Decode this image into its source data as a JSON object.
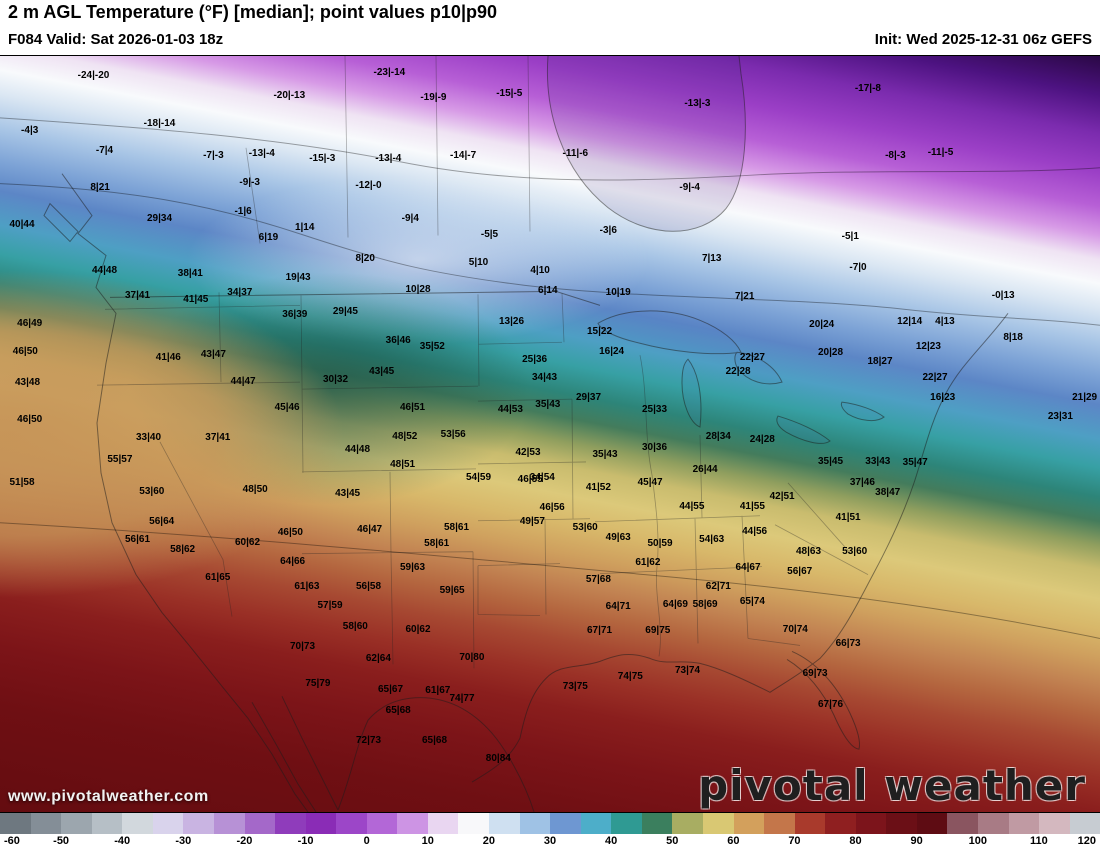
{
  "header": {
    "title": "2 m AGL Temperature (°F) [median]; point values p10|p90",
    "valid": "F084 Valid: Sat 2026-01-03 18z",
    "init": "Init: Wed 2025-12-31 06z GEFS"
  },
  "watermark": {
    "url_text": "www.pivotalweather.com",
    "logo_text": "pivotal weather"
  },
  "colorbar": {
    "min": -60,
    "max": 120,
    "ticks": [
      -60,
      -50,
      -40,
      -30,
      -20,
      -10,
      0,
      10,
      20,
      30,
      40,
      50,
      60,
      70,
      80,
      90,
      100,
      110,
      120
    ],
    "segments": [
      "#6e7880",
      "#848e97",
      "#9ca6ae",
      "#b6bfc6",
      "#d2d8dd",
      "#d9d3ec",
      "#c9b4e2",
      "#b791d6",
      "#a468c9",
      "#8f3cbb",
      "#8a2cb6",
      "#9c46c8",
      "#b367d7",
      "#cd94e4",
      "#e9d6f1",
      "#f8f8fa",
      "#cfe0f1",
      "#9fc2e5",
      "#6e97d2",
      "#4daec9",
      "#2f9a93",
      "#3b7f5e",
      "#a8ad62",
      "#d9c873",
      "#d3a05c",
      "#c4764a",
      "#a93a2c",
      "#8f1f20",
      "#7c141b",
      "#6b0f16",
      "#5e0c13",
      "#8a5560",
      "#a87b85",
      "#c09aa3",
      "#d4b8bf",
      "#c7ccd2"
    ]
  },
  "map": {
    "points": [
      {
        "x": 8.5,
        "y": 2.6,
        "v": "-24|-20"
      },
      {
        "x": 26.3,
        "y": 5.3,
        "v": "-20|-13"
      },
      {
        "x": 35.4,
        "y": 2.2,
        "v": "-23|-14"
      },
      {
        "x": 39.4,
        "y": 5.5,
        "v": "-19|-9"
      },
      {
        "x": 46.3,
        "y": 5.0,
        "v": "-15|-5"
      },
      {
        "x": 63.4,
        "y": 6.3,
        "v": "-13|-3"
      },
      {
        "x": 78.9,
        "y": 4.4,
        "v": "-17|-8"
      },
      {
        "x": 2.7,
        "y": 9.9,
        "v": "-4|3"
      },
      {
        "x": 14.5,
        "y": 9.0,
        "v": "-18|-14"
      },
      {
        "x": 9.5,
        "y": 12.5,
        "v": "-7|4"
      },
      {
        "x": 19.4,
        "y": 13.2,
        "v": "-7|-3"
      },
      {
        "x": 23.8,
        "y": 12.9,
        "v": "-13|-4"
      },
      {
        "x": 29.3,
        "y": 13.6,
        "v": "-15|-3"
      },
      {
        "x": 35.3,
        "y": 13.6,
        "v": "-13|-4"
      },
      {
        "x": 42.1,
        "y": 13.2,
        "v": "-14|-7"
      },
      {
        "x": 52.3,
        "y": 12.9,
        "v": "-11|-6"
      },
      {
        "x": 81.4,
        "y": 13.2,
        "v": "-8|-3"
      },
      {
        "x": 85.5,
        "y": 12.8,
        "v": "-11|-5"
      },
      {
        "x": 9.1,
        "y": 17.5,
        "v": "8|21"
      },
      {
        "x": 22.7,
        "y": 16.8,
        "v": "-9|-3"
      },
      {
        "x": 33.5,
        "y": 17.2,
        "v": "-12|-0"
      },
      {
        "x": 62.7,
        "y": 17.5,
        "v": "-9|-4"
      },
      {
        "x": 77.3,
        "y": 24.0,
        "v": "-5|1"
      },
      {
        "x": 22.1,
        "y": 20.7,
        "v": "-1|6"
      },
      {
        "x": 14.5,
        "y": 21.5,
        "v": "29|34"
      },
      {
        "x": 2.0,
        "y": 22.4,
        "v": "40|44"
      },
      {
        "x": 24.4,
        "y": 24.1,
        "v": "6|19"
      },
      {
        "x": 27.7,
        "y": 22.8,
        "v": "1|14"
      },
      {
        "x": 37.3,
        "y": 21.5,
        "v": "-9|4"
      },
      {
        "x": 44.5,
        "y": 23.7,
        "v": "-5|5"
      },
      {
        "x": 55.3,
        "y": 23.1,
        "v": "-3|6"
      },
      {
        "x": 64.7,
        "y": 26.8,
        "v": "7|13"
      },
      {
        "x": 33.2,
        "y": 26.8,
        "v": "8|20"
      },
      {
        "x": 27.1,
        "y": 29.4,
        "v": "19|43"
      },
      {
        "x": 17.3,
        "y": 28.8,
        "v": "38|41"
      },
      {
        "x": 9.5,
        "y": 28.4,
        "v": "44|48"
      },
      {
        "x": 38.0,
        "y": 30.9,
        "v": "10|28"
      },
      {
        "x": 43.5,
        "y": 27.4,
        "v": "5|10"
      },
      {
        "x": 49.1,
        "y": 28.4,
        "v": "4|10"
      },
      {
        "x": 49.8,
        "y": 31.1,
        "v": "6|14"
      },
      {
        "x": 56.2,
        "y": 31.4,
        "v": "10|19"
      },
      {
        "x": 67.7,
        "y": 31.9,
        "v": "7|21"
      },
      {
        "x": 78.0,
        "y": 28.0,
        "v": "-7|0"
      },
      {
        "x": 91.2,
        "y": 31.8,
        "v": "-0|13"
      },
      {
        "x": 74.7,
        "y": 35.6,
        "v": "20|24"
      },
      {
        "x": 92.1,
        "y": 37.3,
        "v": "8|18"
      },
      {
        "x": 82.7,
        "y": 35.2,
        "v": "12|14"
      },
      {
        "x": 85.9,
        "y": 35.2,
        "v": "4|13"
      },
      {
        "x": 84.4,
        "y": 38.5,
        "v": "12|23"
      },
      {
        "x": 54.5,
        "y": 36.5,
        "v": "15|22"
      },
      {
        "x": 55.6,
        "y": 39.2,
        "v": "16|24"
      },
      {
        "x": 46.5,
        "y": 35.2,
        "v": "13|26"
      },
      {
        "x": 48.6,
        "y": 40.2,
        "v": "25|36"
      },
      {
        "x": 68.4,
        "y": 40.0,
        "v": "22|27"
      },
      {
        "x": 67.1,
        "y": 41.8,
        "v": "22|28"
      },
      {
        "x": 75.5,
        "y": 39.3,
        "v": "20|28"
      },
      {
        "x": 80.0,
        "y": 40.5,
        "v": "18|27"
      },
      {
        "x": 85.0,
        "y": 42.6,
        "v": "22|27"
      },
      {
        "x": 85.7,
        "y": 45.3,
        "v": "16|23"
      },
      {
        "x": 98.6,
        "y": 45.3,
        "v": "21|29"
      },
      {
        "x": 96.4,
        "y": 47.8,
        "v": "23|31"
      },
      {
        "x": 49.5,
        "y": 42.6,
        "v": "34|43"
      },
      {
        "x": 49.8,
        "y": 46.2,
        "v": "35|43"
      },
      {
        "x": 53.5,
        "y": 45.3,
        "v": "29|37"
      },
      {
        "x": 46.4,
        "y": 46.8,
        "v": "44|53"
      },
      {
        "x": 59.5,
        "y": 46.8,
        "v": "25|33"
      },
      {
        "x": 2.7,
        "y": 35.4,
        "v": "46|49"
      },
      {
        "x": 12.5,
        "y": 31.8,
        "v": "37|41"
      },
      {
        "x": 17.8,
        "y": 32.3,
        "v": "41|45"
      },
      {
        "x": 21.8,
        "y": 31.4,
        "v": "34|37"
      },
      {
        "x": 26.8,
        "y": 34.3,
        "v": "36|39"
      },
      {
        "x": 31.4,
        "y": 33.9,
        "v": "29|45"
      },
      {
        "x": 36.2,
        "y": 37.7,
        "v": "36|46"
      },
      {
        "x": 39.3,
        "y": 38.5,
        "v": "35|52"
      },
      {
        "x": 2.3,
        "y": 39.2,
        "v": "46|50"
      },
      {
        "x": 15.3,
        "y": 40.0,
        "v": "41|46"
      },
      {
        "x": 19.4,
        "y": 39.6,
        "v": "43|47"
      },
      {
        "x": 22.1,
        "y": 43.1,
        "v": "44|47"
      },
      {
        "x": 30.5,
        "y": 42.9,
        "v": "30|32"
      },
      {
        "x": 34.7,
        "y": 41.8,
        "v": "43|45"
      },
      {
        "x": 2.5,
        "y": 43.3,
        "v": "43|48"
      },
      {
        "x": 26.1,
        "y": 46.6,
        "v": "45|46"
      },
      {
        "x": 37.5,
        "y": 46.6,
        "v": "46|51"
      },
      {
        "x": 2.7,
        "y": 48.2,
        "v": "46|50"
      },
      {
        "x": 13.5,
        "y": 50.5,
        "v": "33|40"
      },
      {
        "x": 19.8,
        "y": 50.5,
        "v": "37|41"
      },
      {
        "x": 32.5,
        "y": 52.1,
        "v": "44|48"
      },
      {
        "x": 36.8,
        "y": 50.4,
        "v": "48|52"
      },
      {
        "x": 41.2,
        "y": 50.1,
        "v": "53|56"
      },
      {
        "x": 10.9,
        "y": 53.4,
        "v": "55|57"
      },
      {
        "x": 48.0,
        "y": 52.5,
        "v": "42|53"
      },
      {
        "x": 49.3,
        "y": 55.8,
        "v": "34|54"
      },
      {
        "x": 55.0,
        "y": 52.8,
        "v": "35|43"
      },
      {
        "x": 59.5,
        "y": 51.8,
        "v": "30|36"
      },
      {
        "x": 65.3,
        "y": 50.4,
        "v": "28|34"
      },
      {
        "x": 69.3,
        "y": 50.8,
        "v": "24|28"
      },
      {
        "x": 64.1,
        "y": 54.7,
        "v": "26|44"
      },
      {
        "x": 75.5,
        "y": 53.7,
        "v": "35|45"
      },
      {
        "x": 79.8,
        "y": 53.7,
        "v": "33|43"
      },
      {
        "x": 83.2,
        "y": 53.8,
        "v": "35|47"
      },
      {
        "x": 78.4,
        "y": 56.5,
        "v": "37|46"
      },
      {
        "x": 80.7,
        "y": 57.8,
        "v": "38|47"
      },
      {
        "x": 77.1,
        "y": 61.1,
        "v": "41|51"
      },
      {
        "x": 2.0,
        "y": 56.5,
        "v": "51|58"
      },
      {
        "x": 13.8,
        "y": 57.7,
        "v": "53|60"
      },
      {
        "x": 23.2,
        "y": 57.4,
        "v": "48|50"
      },
      {
        "x": 31.6,
        "y": 58.0,
        "v": "43|45"
      },
      {
        "x": 36.6,
        "y": 54.1,
        "v": "48|51"
      },
      {
        "x": 43.5,
        "y": 55.8,
        "v": "54|59"
      },
      {
        "x": 48.2,
        "y": 56.1,
        "v": "46|55"
      },
      {
        "x": 54.4,
        "y": 57.1,
        "v": "41|52"
      },
      {
        "x": 59.1,
        "y": 56.5,
        "v": "45|47"
      },
      {
        "x": 62.9,
        "y": 59.6,
        "v": "44|55"
      },
      {
        "x": 68.4,
        "y": 59.6,
        "v": "41|55"
      },
      {
        "x": 71.1,
        "y": 58.3,
        "v": "42|51"
      },
      {
        "x": 50.2,
        "y": 59.8,
        "v": "46|56"
      },
      {
        "x": 53.2,
        "y": 62.4,
        "v": "53|60"
      },
      {
        "x": 48.4,
        "y": 61.6,
        "v": "49|57"
      },
      {
        "x": 56.2,
        "y": 63.7,
        "v": "49|63"
      },
      {
        "x": 14.7,
        "y": 61.7,
        "v": "56|64"
      },
      {
        "x": 12.5,
        "y": 64.0,
        "v": "56|61"
      },
      {
        "x": 16.6,
        "y": 65.3,
        "v": "58|62"
      },
      {
        "x": 22.5,
        "y": 64.4,
        "v": "60|62"
      },
      {
        "x": 26.4,
        "y": 63.1,
        "v": "46|50"
      },
      {
        "x": 33.6,
        "y": 62.7,
        "v": "46|47"
      },
      {
        "x": 41.5,
        "y": 62.4,
        "v": "58|61"
      },
      {
        "x": 39.7,
        "y": 64.6,
        "v": "58|61"
      },
      {
        "x": 26.6,
        "y": 66.9,
        "v": "64|66"
      },
      {
        "x": 19.8,
        "y": 69.0,
        "v": "61|65"
      },
      {
        "x": 37.5,
        "y": 67.7,
        "v": "59|63"
      },
      {
        "x": 33.5,
        "y": 70.3,
        "v": "56|58"
      },
      {
        "x": 27.9,
        "y": 70.3,
        "v": "61|63"
      },
      {
        "x": 41.1,
        "y": 70.8,
        "v": "59|65"
      },
      {
        "x": 30.0,
        "y": 72.8,
        "v": "57|59"
      },
      {
        "x": 32.3,
        "y": 75.5,
        "v": "58|60"
      },
      {
        "x": 38.0,
        "y": 75.9,
        "v": "60|62"
      },
      {
        "x": 60.0,
        "y": 64.6,
        "v": "50|59"
      },
      {
        "x": 58.9,
        "y": 67.0,
        "v": "61|62"
      },
      {
        "x": 64.7,
        "y": 64.0,
        "v": "54|63"
      },
      {
        "x": 68.6,
        "y": 62.9,
        "v": "44|56"
      },
      {
        "x": 73.5,
        "y": 65.6,
        "v": "48|63"
      },
      {
        "x": 77.7,
        "y": 65.6,
        "v": "53|60"
      },
      {
        "x": 68.0,
        "y": 67.7,
        "v": "64|67"
      },
      {
        "x": 72.7,
        "y": 68.2,
        "v": "56|67"
      },
      {
        "x": 65.3,
        "y": 70.2,
        "v": "62|71"
      },
      {
        "x": 54.4,
        "y": 69.3,
        "v": "57|68"
      },
      {
        "x": 56.2,
        "y": 72.9,
        "v": "64|71"
      },
      {
        "x": 61.4,
        "y": 72.6,
        "v": "64|69"
      },
      {
        "x": 64.1,
        "y": 72.6,
        "v": "58|69"
      },
      {
        "x": 68.4,
        "y": 72.2,
        "v": "65|74"
      },
      {
        "x": 54.5,
        "y": 76.1,
        "v": "67|71"
      },
      {
        "x": 59.8,
        "y": 76.1,
        "v": "69|75"
      },
      {
        "x": 72.3,
        "y": 75.9,
        "v": "70|74"
      },
      {
        "x": 77.1,
        "y": 77.8,
        "v": "66|73"
      },
      {
        "x": 34.4,
        "y": 79.8,
        "v": "62|64"
      },
      {
        "x": 27.5,
        "y": 78.2,
        "v": "70|73"
      },
      {
        "x": 28.9,
        "y": 83.1,
        "v": "75|79"
      },
      {
        "x": 35.5,
        "y": 83.8,
        "v": "65|67"
      },
      {
        "x": 39.8,
        "y": 84.0,
        "v": "61|67"
      },
      {
        "x": 42.9,
        "y": 79.6,
        "v": "70|80"
      },
      {
        "x": 42.0,
        "y": 85.1,
        "v": "74|77"
      },
      {
        "x": 52.3,
        "y": 83.5,
        "v": "73|75"
      },
      {
        "x": 57.3,
        "y": 82.2,
        "v": "74|75"
      },
      {
        "x": 62.5,
        "y": 81.4,
        "v": "73|74"
      },
      {
        "x": 74.1,
        "y": 81.8,
        "v": "69|73"
      },
      {
        "x": 75.5,
        "y": 85.8,
        "v": "67|76"
      },
      {
        "x": 36.2,
        "y": 86.7,
        "v": "65|68"
      },
      {
        "x": 33.5,
        "y": 90.6,
        "v": "72|73"
      },
      {
        "x": 39.5,
        "y": 90.6,
        "v": "65|68"
      },
      {
        "x": 45.3,
        "y": 93.0,
        "v": "80|84"
      }
    ]
  }
}
